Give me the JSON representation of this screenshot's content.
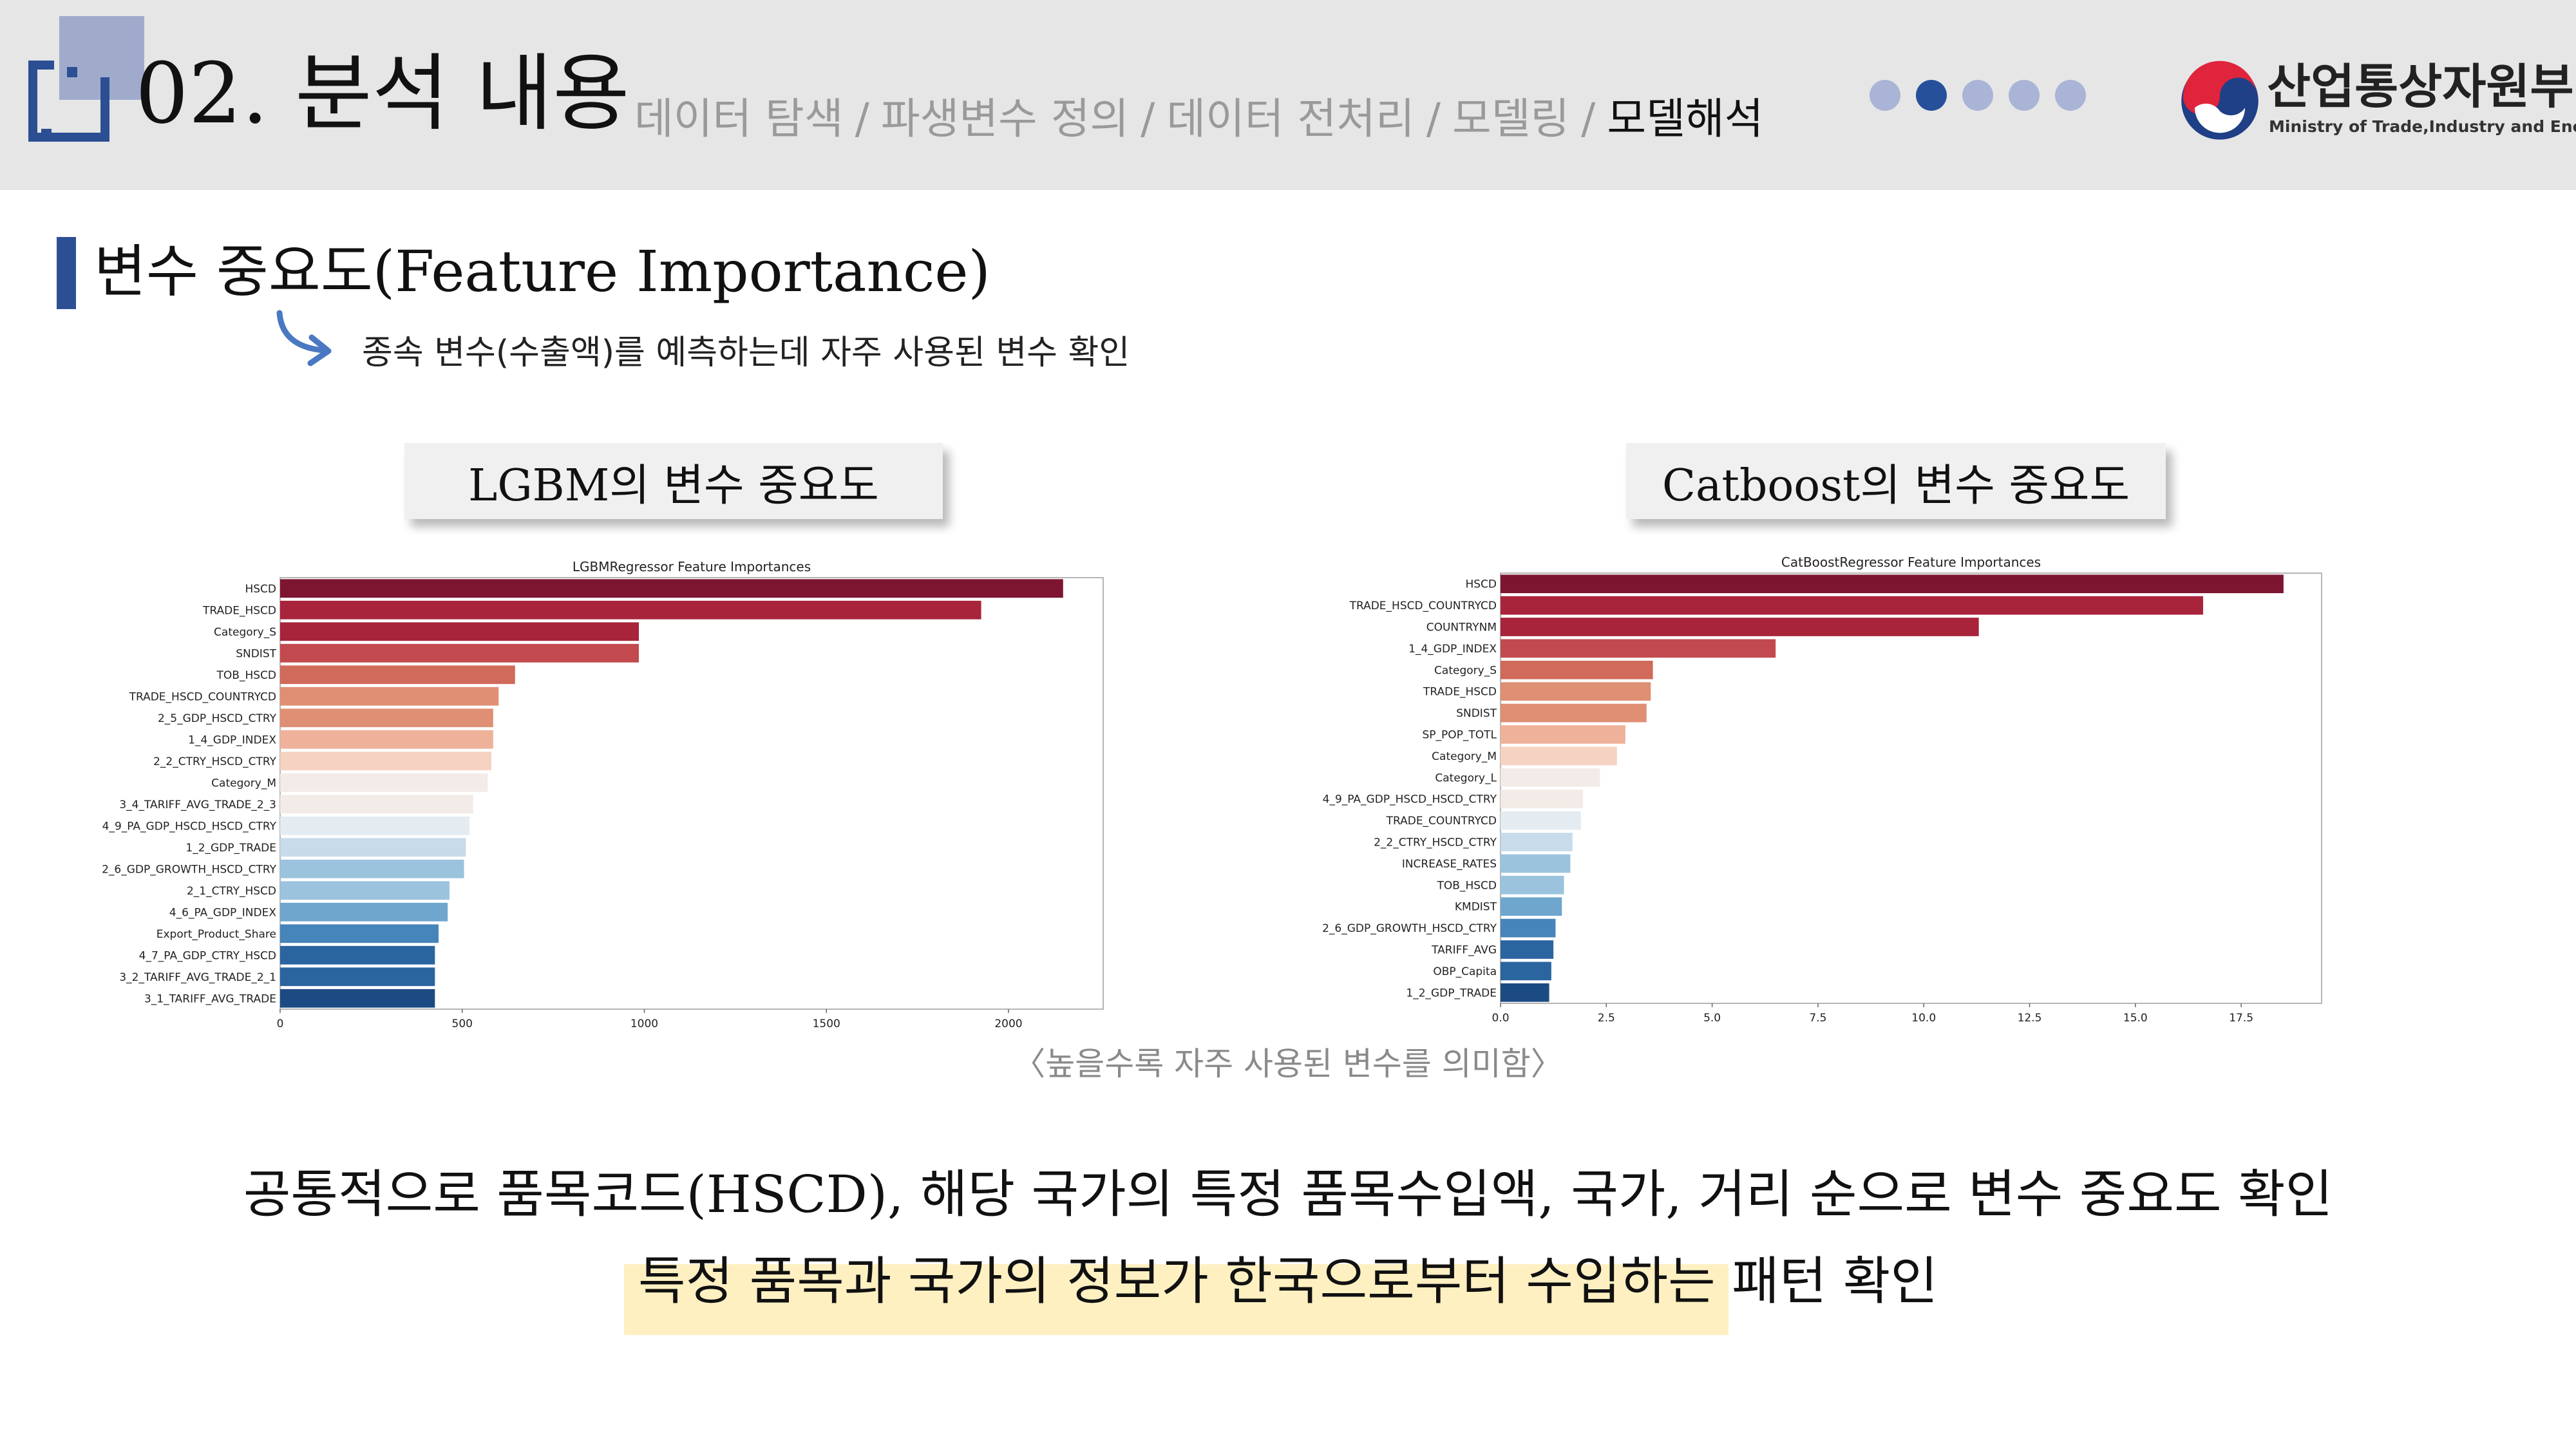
{
  "header": {
    "title": "02. 분석 내용",
    "nav": [
      "데이터 탐색",
      "파생변수 정의",
      "데이터 전처리",
      "모델링",
      "모델해석"
    ],
    "nav_separator": "/",
    "active_index": 4,
    "progress": {
      "total": 5,
      "current": 2
    },
    "logo_ko": "산업통상자원부",
    "logo_en": "Ministry of Trade,Industry and Energy"
  },
  "section": {
    "title": "변수 중요도(Feature Importance)",
    "subtitle": "종속 변수(수출액)를 예측하는데 자주 사용된 변수 확인"
  },
  "boxes": {
    "lgbm": "LGBM의 변수 중요도",
    "catboost": "Catboost의 변수 중요도"
  },
  "caption": "〈높을수록 자주 사용된 변수를 의미함〉",
  "summary": {
    "line1": "공통적으로 품목코드(HSCD), 해당 국가의 특정 품목수입액, 국가, 거리 순으로 변수 중요도 확인",
    "line2": "특정 품목과 국가의 정보가 한국으로부터 수입하는 패턴 확인"
  },
  "colors": {
    "accent": "#2c4f94",
    "highlight": "#fff0c2",
    "bar_palette": [
      "#7d1530",
      "#a8243b",
      "#c24a4e",
      "#d06a5a",
      "#df8f74",
      "#eeb29a",
      "#f6d2c2",
      "#f3ebe7",
      "#e4ecf2",
      "#c7dbea",
      "#9bc3dd",
      "#6ea6cd",
      "#4685ba",
      "#2b65a0",
      "#1c4b83"
    ]
  },
  "chart_data": [
    {
      "type": "bar",
      "orientation": "horizontal",
      "title": "LGBMRegressor Feature Importances",
      "categories": [
        "HSCD",
        "TRADE_HSCD",
        "Category_S",
        "SNDIST",
        "TOB_HSCD",
        "TRADE_HSCD_COUNTRYCD",
        "2_5_GDP_HSCD_CTRY",
        "1_4_GDP_INDEX",
        "2_2_CTRY_HSCD_CTRY",
        "Category_M",
        "3_4_TARIFF_AVG_TRADE_2_3",
        "4_9_PA_GDP_HSCD_HSCD_CTRY",
        "1_2_GDP_TRADE",
        "2_6_GDP_GROWTH_HSCD_CTRY",
        "2_1_CTRY_HSCD",
        "4_6_PA_GDP_INDEX",
        "Export_Product_Share",
        "4_7_PA_GDP_CTRY_HSCD",
        "3_2_TARIFF_AVG_TRADE_2_1",
        "3_1_TARIFF_AVG_TRADE"
      ],
      "values": [
        2150,
        1925,
        985,
        985,
        645,
        600,
        585,
        585,
        580,
        570,
        530,
        520,
        510,
        505,
        465,
        460,
        435,
        425,
        425,
        425
      ],
      "xticks": [
        0,
        500,
        1000,
        1500,
        2000
      ],
      "xtick_labels": [
        "0",
        "500",
        "1000",
        "1500",
        "2000"
      ],
      "xlim": [
        0,
        2260
      ]
    },
    {
      "type": "bar",
      "orientation": "horizontal",
      "title": "CatBoostRegressor Feature Importances",
      "categories": [
        "HSCD",
        "TRADE_HSCD_COUNTRYCD",
        "COUNTRYNM",
        "1_4_GDP_INDEX",
        "Category_S",
        "TRADE_HSCD",
        "SNDIST",
        "SP_POP_TOTL",
        "Category_M",
        "Category_L",
        "4_9_PA_GDP_HSCD_HSCD_CTRY",
        "TRADE_COUNTRYCD",
        "2_2_CTRY_HSCD_CTRY",
        "INCREASE_RATES",
        "TOB_HSCD",
        "KMDIST",
        "2_6_GDP_GROWTH_HSCD_CTRY",
        "TARIFF_AVG",
        "OBP_Capita",
        "1_2_GDP_TRADE"
      ],
      "values": [
        18.5,
        16.6,
        11.3,
        6.5,
        3.6,
        3.55,
        3.45,
        2.95,
        2.75,
        2.35,
        1.95,
        1.9,
        1.7,
        1.65,
        1.5,
        1.45,
        1.3,
        1.25,
        1.2,
        1.15
      ],
      "xticks": [
        0,
        2.5,
        5,
        7.5,
        10,
        12.5,
        15,
        17.5
      ],
      "xtick_labels": [
        "0.0",
        "2.5",
        "5.0",
        "7.5",
        "10.0",
        "12.5",
        "15.0",
        "17.5"
      ],
      "xlim": [
        0,
        19.4
      ]
    }
  ]
}
